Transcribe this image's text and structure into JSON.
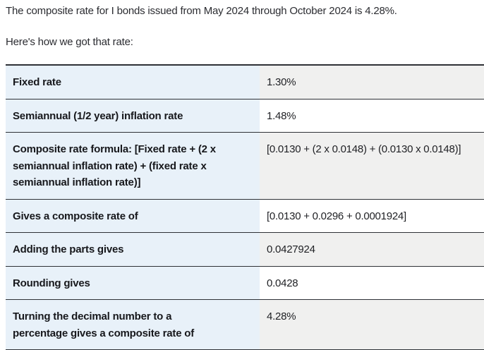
{
  "intro": {
    "line1": "The composite rate for I bonds issued from May 2024 through October 2024 is 4.28%.",
    "line2": "Here's how we got that rate:"
  },
  "table": {
    "rows": [
      {
        "label": "Fixed rate",
        "value": "1.30%",
        "shaded": true
      },
      {
        "label": "Semiannual (1/2 year) inflation rate",
        "value": "1.48%",
        "shaded": false
      },
      {
        "label": "Composite rate formula: [Fixed rate + (2 x\nsemiannual inflation rate) + (fixed rate x\nsemiannual inflation rate)]",
        "value": "[0.0130 + (2 x 0.0148) + (0.0130 x 0.0148)]",
        "shaded": true
      },
      {
        "label": "Gives a composite rate of",
        "value": "[0.0130 + 0.0296 + 0.0001924]",
        "shaded": false
      },
      {
        "label": "Adding the parts gives",
        "value": "0.0427924",
        "shaded": true
      },
      {
        "label": "Rounding gives",
        "value": "0.0428",
        "shaded": false
      },
      {
        "label": "Turning the decimal number to a\npercentage gives a composite rate of",
        "value": "4.28%",
        "shaded": true
      }
    ]
  },
  "colors": {
    "label_cell_bg": "#e8f1f9",
    "value_cell_bg_shaded": "#f0f0ef",
    "value_cell_bg_plain": "#ffffff",
    "row_border": "#2e3136",
    "text": "#1f2024"
  }
}
